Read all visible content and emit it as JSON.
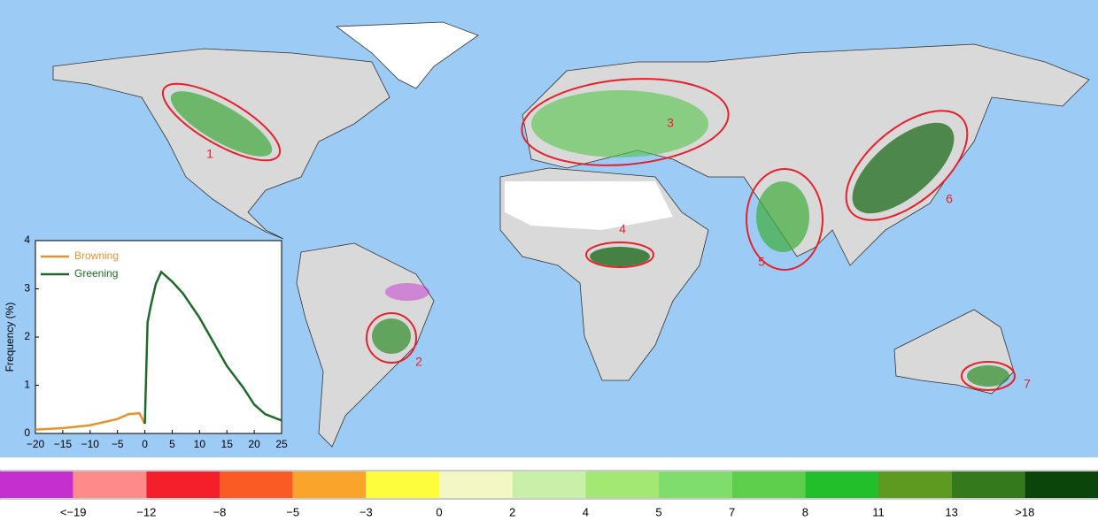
{
  "map": {
    "regions": [
      {
        "label": "1"
      },
      {
        "label": "2"
      },
      {
        "label": "3"
      },
      {
        "label": "4"
      },
      {
        "label": "5"
      },
      {
        "label": "6"
      },
      {
        "label": "7"
      }
    ]
  },
  "chart_data": {
    "type": "line",
    "ylabel": "Frequency (%)",
    "x": [
      -20,
      -15,
      -10,
      -5,
      -3,
      -1,
      0,
      0.5,
      1,
      2,
      3,
      4,
      5,
      7,
      10,
      13,
      15,
      18,
      20,
      22,
      25
    ],
    "series": [
      {
        "name": "Browning",
        "color": "#e8922c",
        "values": [
          0.08,
          0.11,
          0.17,
          0.3,
          0.4,
          0.42,
          0.2,
          null,
          null,
          null,
          null,
          null,
          null,
          null,
          null,
          null,
          null,
          null,
          null,
          null,
          null
        ]
      },
      {
        "name": "Greening",
        "color": "#1d6b2a",
        "values": [
          null,
          null,
          null,
          null,
          null,
          null,
          0.2,
          2.3,
          2.6,
          3.1,
          3.35,
          3.25,
          3.15,
          2.9,
          2.4,
          1.8,
          1.4,
          0.95,
          0.6,
          0.4,
          0.27
        ]
      }
    ],
    "xlim": [
      -20,
      25
    ],
    "ylim": [
      0,
      4
    ],
    "xticks": [
      {
        "value": -20,
        "label": "−20"
      },
      {
        "value": -15,
        "label": "−15"
      },
      {
        "value": -10,
        "label": "−10"
      },
      {
        "value": -5,
        "label": "−5"
      },
      0,
      5,
      10,
      15,
      20,
      25
    ],
    "yticks": [
      0,
      1,
      2,
      3,
      4
    ],
    "legend": "upper-left"
  },
  "colorbar": {
    "colors": [
      "#c52fcf",
      "#ff8a8a",
      "#f51f2b",
      "#fa5a23",
      "#fba42c",
      "#fdfd3e",
      "#f2f7c4",
      "#c8f0a8",
      "#a3e873",
      "#7fdd6c",
      "#5dcf4d",
      "#22bf2a",
      "#5d9a1f",
      "#347a1c",
      "#0b4509"
    ],
    "labels": [
      "<−19",
      "−12",
      "−8",
      "−5",
      "−3",
      "0",
      "2",
      "4",
      "5",
      "7",
      "8",
      "11",
      "13",
      ">18"
    ]
  }
}
